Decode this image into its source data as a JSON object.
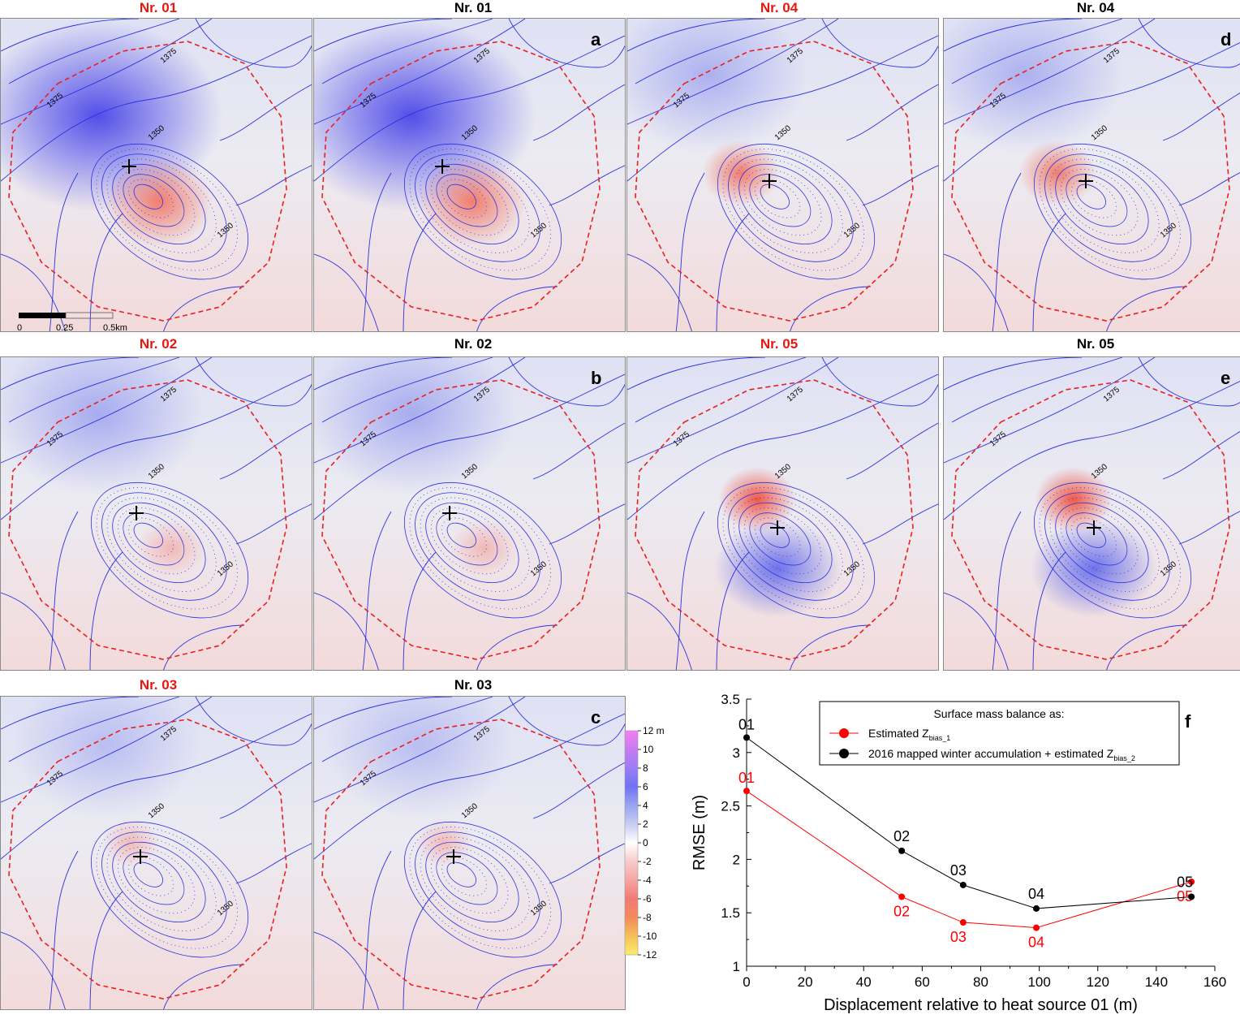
{
  "maps": [
    {
      "title": "Nr. 01",
      "title_color": "red",
      "letter": "",
      "pattern": "01",
      "variant": "est"
    },
    {
      "title": "Nr. 01",
      "title_color": "black",
      "letter": "a",
      "pattern": "01",
      "variant": "map"
    },
    {
      "title": "Nr. 04",
      "title_color": "red",
      "letter": "",
      "pattern": "04",
      "variant": "est"
    },
    {
      "title": "Nr. 04",
      "title_color": "black",
      "letter": "d",
      "pattern": "04",
      "variant": "map"
    },
    {
      "title": "Nr. 02",
      "title_color": "red",
      "letter": "",
      "pattern": "02",
      "variant": "est"
    },
    {
      "title": "Nr. 02",
      "title_color": "black",
      "letter": "b",
      "pattern": "02",
      "variant": "map"
    },
    {
      "title": "Nr. 05",
      "title_color": "red",
      "letter": "",
      "pattern": "05",
      "variant": "est"
    },
    {
      "title": "Nr. 05",
      "title_color": "black",
      "letter": "e",
      "pattern": "05",
      "variant": "map"
    },
    {
      "title": "Nr. 03",
      "title_color": "red",
      "letter": "",
      "pattern": "03",
      "variant": "est"
    },
    {
      "title": "Nr. 03",
      "title_color": "black",
      "letter": "c",
      "pattern": "03",
      "variant": "map"
    }
  ],
  "contour_labels": {
    "upper": "1375",
    "inner": "1350"
  },
  "scale_bar": {
    "labels": [
      "0",
      "0.25",
      "0.5km"
    ]
  },
  "colorbar": {
    "ticks": [
      "12 m",
      "10",
      "8",
      "6",
      "4",
      "2",
      "0",
      "-2",
      "-4",
      "-6",
      "-8",
      "-10",
      "-12"
    ],
    "colors": [
      "#f47ef2",
      "#c77bf0",
      "#9b7df5",
      "#6f73f2",
      "#9aa4f2",
      "#c8ccf2",
      "#ffffff",
      "#f7cccc",
      "#f5a4a2",
      "#f27a76",
      "#f38a5c",
      "#f6c05a",
      "#f9ec6a"
    ]
  },
  "chart_data": {
    "type": "line",
    "panel_letter": "f",
    "title": "",
    "xlabel": "Displacement relative to heat source 01 (m)",
    "ylabel": "RMSE (m)",
    "xlim": [
      0,
      160
    ],
    "ylim": [
      1,
      3.5
    ],
    "xticks": [
      "0",
      "20",
      "40",
      "60",
      "80",
      "100",
      "120",
      "140",
      "160"
    ],
    "yticks": [
      "1",
      "1.5",
      "2",
      "2.5",
      "3",
      "3.5"
    ],
    "legend_title": "Surface mass balance as:",
    "series": [
      {
        "name": "Estimated Z",
        "name_sub": "bias_1",
        "color": "#ff0000",
        "x": [
          0,
          53,
          74,
          99,
          152
        ],
        "y": [
          2.64,
          1.65,
          1.41,
          1.36,
          1.79
        ],
        "labels": [
          "01",
          "02",
          "03",
          "04",
          "05"
        ]
      },
      {
        "name": "2016 mapped winter accumulation + estimated Z",
        "name_sub": "bias_2",
        "color": "#000000",
        "x": [
          0,
          53,
          74,
          99,
          152
        ],
        "y": [
          3.14,
          2.08,
          1.76,
          1.54,
          1.65
        ],
        "labels": [
          "01",
          "02",
          "03",
          "04",
          "05"
        ]
      }
    ]
  }
}
